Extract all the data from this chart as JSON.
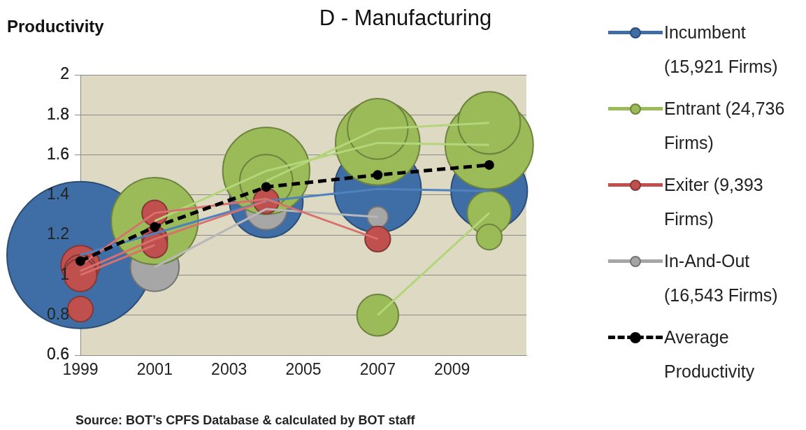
{
  "chart_data": {
    "type": "bubble",
    "title": "D - Manufacturing",
    "ylabel": "Productivity",
    "xlim": [
      1999,
      2011
    ],
    "xticks": [
      1999,
      2001,
      2003,
      2005,
      2007,
      2009
    ],
    "ylim": [
      0.6,
      2
    ],
    "yticks": [
      0.6,
      0.8,
      1,
      1.2,
      1.4,
      1.6,
      1.8,
      2
    ],
    "grid": "y",
    "legend": "right",
    "annotations": [
      "Source: BOT’s CPFS Database & calculated by BOT staff"
    ],
    "series": [
      {
        "name": "Incumbent (15,921 Firms)",
        "color": "#3f6ea6",
        "x": [
          1999,
          2004,
          2007,
          2010
        ],
        "values": [
          1.1,
          1.37,
          1.43,
          1.42
        ],
        "sizes": [
          1,
          0.25,
          0.35,
          0.27
        ]
      },
      {
        "name": "In-And-Out (16,543 Firms)",
        "color": "#a6a6a6",
        "x": [
          2001,
          2004,
          2007
        ],
        "values": [
          1.04,
          1.33,
          1.29
        ],
        "sizes": [
          0.11,
          0.08,
          0.02
        ]
      },
      {
        "name": "Entrant (24,736 Firms)",
        "color": "#9bbb59",
        "x": [
          2001,
          2004,
          2007,
          2010
        ],
        "values": [
          1.27,
          1.52,
          1.66,
          1.65
        ],
        "sizes": [
          0.35,
          0.35,
          0.33,
          0.36
        ]
      },
      {
        "color": "#9bbb59",
        "x": [
          2004,
          2007,
          2010
        ],
        "values": [
          1.47,
          1.73,
          1.76
        ],
        "sizes": [
          0.13,
          0.17,
          0.18
        ]
      },
      {
        "color": "#9bbb59",
        "x": [
          2007,
          2010
        ],
        "values": [
          0.8,
          1.31
        ],
        "sizes": [
          0.08,
          0.09
        ]
      },
      {
        "color": "#9bbb59",
        "x": [
          2010
        ],
        "values": [
          1.19
        ],
        "sizes": [
          0.03
        ]
      },
      {
        "name": "Exiter (9,393 Firms)",
        "color": "#c0504d",
        "x": [
          1999,
          2001,
          2007
        ],
        "values": [
          1.05,
          1.31,
          1.18
        ],
        "sizes": [
          0.07,
          0.03,
          0.03
        ]
      },
      {
        "color": "#c0504d",
        "x": [
          1999,
          2001,
          2004
        ],
        "values": [
          1.02,
          1.18,
          1.37
        ],
        "sizes": [
          0.05,
          0.03,
          0.03
        ]
      },
      {
        "color": "#c0504d",
        "x": [
          1999,
          2001
        ],
        "values": [
          1,
          1.15
        ],
        "sizes": [
          0.05,
          0.03
        ]
      },
      {
        "color": "#c0504d",
        "x": [
          1999
        ],
        "values": [
          0.83
        ],
        "sizes": [
          0.03
        ]
      },
      {
        "type": "line",
        "color": "#4f81bd",
        "marker": "none",
        "x": [
          1999,
          2004,
          2007,
          2010
        ],
        "values": [
          1.1,
          1.37,
          1.43,
          1.42
        ]
      },
      {
        "type": "line",
        "color": "#b8b8b8",
        "marker": "none",
        "x": [
          2001,
          2004,
          2007
        ],
        "values": [
          1.04,
          1.33,
          1.29
        ]
      },
      {
        "type": "line",
        "color": "#b3d67a",
        "marker": "none",
        "x": [
          2001,
          2004,
          2007,
          2010
        ],
        "values": [
          1.27,
          1.52,
          1.66,
          1.65
        ]
      },
      {
        "type": "line",
        "color": "#b3d67a",
        "marker": "none",
        "x": [
          2004,
          2007,
          2010
        ],
        "values": [
          1.47,
          1.73,
          1.76
        ]
      },
      {
        "type": "line",
        "color": "#b3d67a",
        "marker": "none",
        "x": [
          2007,
          2010
        ],
        "values": [
          0.8,
          1.31
        ]
      },
      {
        "type": "line",
        "color": "#d8706d",
        "marker": "none",
        "x": [
          1999,
          2001,
          2004,
          2007
        ],
        "values": [
          1.05,
          1.31,
          1.38,
          1.18
        ]
      },
      {
        "type": "line",
        "color": "#d8706d",
        "marker": "none",
        "x": [
          1999,
          2001,
          2004
        ],
        "values": [
          1.02,
          1.18,
          1.37
        ]
      },
      {
        "type": "line",
        "color": "#d8706d",
        "marker": "none",
        "x": [
          1999,
          2001
        ],
        "values": [
          1,
          1.15
        ]
      },
      {
        "name": "Average Productivity",
        "type": "line",
        "color": "#000000",
        "line_style": "dashed",
        "marker": "circle",
        "x": [
          1999,
          2001,
          2004,
          2007,
          2010
        ],
        "values": [
          1.07,
          1.24,
          1.44,
          1.5,
          1.55
        ]
      }
    ]
  }
}
